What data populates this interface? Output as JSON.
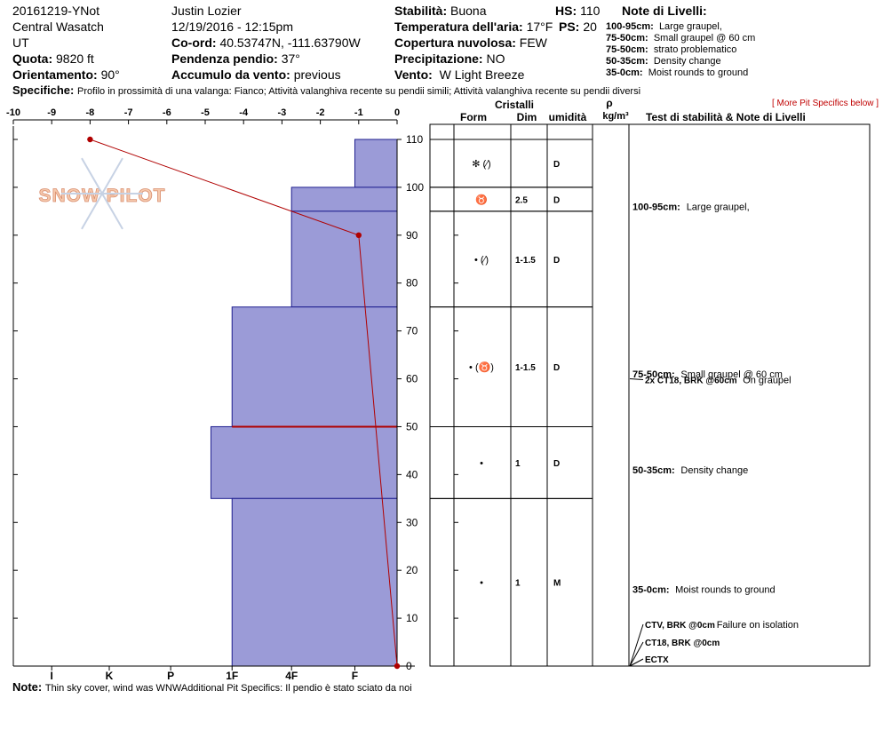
{
  "header": {
    "pit_name": "20161219-YNot",
    "range": "Central Wasatch",
    "state": "UT",
    "elevation_label": "Quota:",
    "elevation_value": "9820 ft",
    "aspect_label": "Orientamento:",
    "aspect_value": "90°",
    "observer": "Justin Lozier",
    "datetime": "12/19/2016 - 12:15pm",
    "coord_label": "Co-ord:",
    "coord_value": "40.53747N, -111.63790W",
    "slope_label": "Pendenza pendio:",
    "slope_value": "37°",
    "wind_load_label": "Accumulo da vento:",
    "wind_load_value": "previous",
    "stability_label": "Stabilità:",
    "stability_value": "Buona",
    "air_temp_label": "Temperatura dell'aria:",
    "air_temp_value": "17°F",
    "cloud_label": "Copertura nuvolosa:",
    "cloud_value": "FEW",
    "precip_label": "Precipitazione:",
    "precip_value": "NO",
    "wind_label": "Vento:",
    "wind_value": "W Light Breeze",
    "hs_label": "HS:",
    "hs_value": "110",
    "ps_label": "PS:",
    "ps_value": "20",
    "specifics_label": "Specifiche:",
    "specifics_value": "Profilo in prossimità di una valanga: Fianco; Attività valanghiva recente su pendii simili; Attività valanghiva recente su pendii diversi"
  },
  "layer_notes": {
    "title": "Note di Livelli:",
    "items": [
      {
        "range": "100-95cm:",
        "text": "Large graupel,"
      },
      {
        "range": "75-50cm:",
        "text": "Small graupel @ 60 cm"
      },
      {
        "range": "75-50cm:",
        "text": "strato problematico"
      },
      {
        "range": "50-35cm:",
        "text": "Density change"
      },
      {
        "range": "35-0cm:",
        "text": "Moist rounds to ground"
      }
    ]
  },
  "more_link": "[ More Pit Specifics below ]",
  "table_headers": {
    "cristalli": "Cristalli",
    "form": "Form",
    "dim": "Dim",
    "umidita": "umidità",
    "rho": "ρ",
    "density_unit": "kg/m³",
    "tests": "Test di stabilità & Note di Livelli"
  },
  "logo": {
    "text": "SNOW PILOT"
  },
  "footer": {
    "note_label": "Note:",
    "note_value": "Thin sky cover, wind was WNWAdditional Pit Specifics: Il pendio è stato sciato da noi"
  },
  "chart_data": {
    "type": "snow-profile",
    "y_range": [
      0,
      110
    ],
    "y_ticks": [
      0,
      10,
      20,
      30,
      40,
      50,
      60,
      70,
      80,
      90,
      100,
      110
    ],
    "temperature_axis": {
      "range": [
        -10,
        0
      ],
      "ticks": [
        "-10",
        "-9",
        "-8",
        "-7",
        "-6",
        "-5",
        "-4",
        "-3",
        "-2",
        "-1",
        "0"
      ]
    },
    "hardness_axis": {
      "codes": [
        "I",
        "K",
        "P",
        "1F",
        "4F",
        "F"
      ],
      "positions": [
        9,
        7.5,
        5.9,
        4.3,
        2.75,
        1.1
      ]
    },
    "hardness_layers": [
      {
        "top": 110,
        "bottom": 100,
        "hardness": "F-4F",
        "value": 1.1
      },
      {
        "top": 100,
        "bottom": 95,
        "hardness": "4F",
        "value": 2.75
      },
      {
        "top": 95,
        "bottom": 75,
        "hardness": "4F",
        "value": 2.75
      },
      {
        "top": 75,
        "bottom": 50,
        "hardness": "1F",
        "value": 4.3
      },
      {
        "top": 50,
        "bottom": 35,
        "hardness": "1F+",
        "value": 4.85
      },
      {
        "top": 35,
        "bottom": 0,
        "hardness": "1F",
        "value": 4.3
      }
    ],
    "critical_layer_depth": 50,
    "temperature_profile": [
      {
        "depth": 110,
        "temp": -8
      },
      {
        "depth": 90,
        "temp": -1
      },
      {
        "depth": 0,
        "temp": 0
      }
    ],
    "layer_rows": [
      {
        "top": 110,
        "bottom": 100,
        "form": "✻ (⁄)",
        "dim": "",
        "wet": "D"
      },
      {
        "top": 100,
        "bottom": 95,
        "form": "♉",
        "dim": "2.5",
        "wet": "D"
      },
      {
        "top": 95,
        "bottom": 75,
        "form": "• (⁄)",
        "dim": "1-1.5",
        "wet": "D"
      },
      {
        "top": 75,
        "bottom": 50,
        "form": "• (♉)",
        "dim": "1-1.5",
        "wet": "D"
      },
      {
        "top": 50,
        "bottom": 35,
        "form": "•",
        "dim": "1",
        "wet": "D"
      },
      {
        "top": 35,
        "bottom": 0,
        "form": "•",
        "dim": "1",
        "wet": "M"
      }
    ],
    "notes": [
      {
        "depth": 96,
        "label": "100-95cm:",
        "text": "Large graupel,"
      },
      {
        "depth": 61,
        "label": "75-50cm:",
        "text": "Small graupel @ 60 cm"
      },
      {
        "depth": 41,
        "label": "50-35cm:",
        "text": "Density change"
      },
      {
        "depth": 16,
        "label": "35-0cm:",
        "text": "Moist rounds to ground"
      }
    ],
    "tests": [
      {
        "depth": 60,
        "label": "2x CT18, BRK @60cm",
        "text": "On graupel"
      },
      {
        "depth": 0,
        "label": "CTV, BRK @0cm",
        "text": "Failure on isolation"
      },
      {
        "depth": 0,
        "label": "CT18, BRK @0cm",
        "text": ""
      },
      {
        "depth": 0,
        "label": "ECTX",
        "text": ""
      }
    ]
  }
}
